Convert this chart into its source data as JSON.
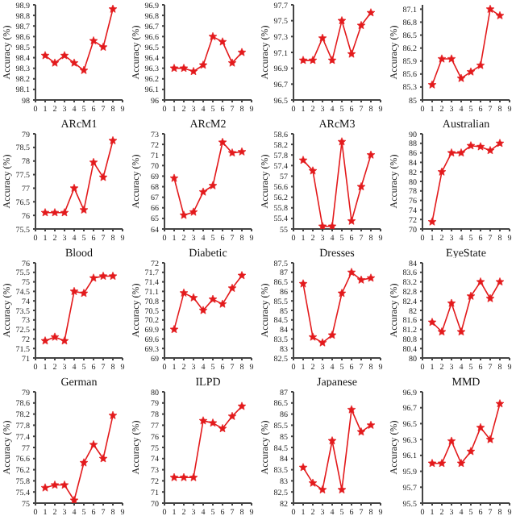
{
  "chart_data": [
    {
      "type": "line",
      "xlabel": "ARcM1",
      "ylabel": "Accuracy (%)",
      "x": [
        1,
        2,
        3,
        4,
        5,
        6,
        7,
        8
      ],
      "values": [
        98.42,
        98.35,
        98.42,
        98.35,
        98.28,
        98.56,
        98.5,
        98.86
      ],
      "color": "#e31a1c",
      "marker": "star",
      "xlim": [
        0,
        9
      ],
      "xticks": [
        0,
        1,
        2,
        3,
        4,
        5,
        6,
        7,
        8,
        9
      ],
      "ylim": [
        98,
        98.9
      ],
      "yticks": [
        98,
        98.1,
        98.2,
        98.3,
        98.4,
        98.5,
        98.6,
        98.7,
        98.8,
        98.9
      ]
    },
    {
      "type": "line",
      "xlabel": "ARcM2",
      "ylabel": "Accuracy (%)",
      "x": [
        1,
        2,
        3,
        4,
        5,
        6,
        7,
        8
      ],
      "values": [
        96.3,
        96.3,
        96.27,
        96.33,
        96.6,
        96.55,
        96.35,
        96.45
      ],
      "color": "#e31a1c",
      "marker": "star",
      "xlim": [
        0,
        9
      ],
      "xticks": [
        0,
        1,
        2,
        3,
        4,
        5,
        6,
        7,
        8,
        9
      ],
      "ylim": [
        96,
        96.9
      ],
      "yticks": [
        96,
        96.1,
        96.2,
        96.3,
        96.4,
        96.5,
        96.6,
        96.7,
        96.8,
        96.9
      ]
    },
    {
      "type": "line",
      "xlabel": "ARcM3",
      "ylabel": "Accuracy (%)",
      "x": [
        1,
        2,
        3,
        4,
        5,
        6,
        7,
        8
      ],
      "values": [
        97.0,
        97.0,
        97.28,
        97.0,
        97.5,
        97.08,
        97.44,
        97.6
      ],
      "color": "#e31a1c",
      "marker": "star",
      "xlim": [
        0,
        9
      ],
      "xticks": [
        0,
        1,
        2,
        3,
        4,
        5,
        6,
        7,
        8,
        9
      ],
      "ylim": [
        96.5,
        97.7
      ],
      "yticks": [
        96.5,
        96.7,
        96.9,
        97.1,
        97.3,
        97.5,
        97.7
      ]
    },
    {
      "type": "line",
      "xlabel": "Australian",
      "ylabel": "Accuracy (%)",
      "x": [
        1,
        2,
        3,
        4,
        5,
        6,
        7,
        8
      ],
      "values": [
        85.35,
        85.95,
        85.95,
        85.5,
        85.65,
        85.8,
        87.1,
        86.95
      ],
      "color": "#e31a1c",
      "marker": "star",
      "xlim": [
        0,
        9
      ],
      "xticks": [
        0,
        1,
        2,
        3,
        4,
        5,
        6,
        7,
        8,
        9
      ],
      "ylim": [
        85,
        87.2
      ],
      "yticks": [
        85,
        85.3,
        85.6,
        85.9,
        86.2,
        86.5,
        86.8,
        87.1
      ]
    },
    {
      "type": "line",
      "xlabel": "Blood",
      "ylabel": "Accuracy (%)",
      "x": [
        1,
        2,
        3,
        4,
        5,
        6,
        7,
        8
      ],
      "values": [
        76.1,
        76.1,
        76.1,
        77.0,
        76.2,
        77.95,
        77.4,
        78.75
      ],
      "color": "#e31a1c",
      "marker": "star",
      "xlim": [
        0,
        9
      ],
      "xticks": [
        0,
        1,
        2,
        3,
        4,
        5,
        6,
        7,
        8,
        9
      ],
      "ylim": [
        75.5,
        79
      ],
      "yticks": [
        75.5,
        76,
        76.5,
        77,
        77.5,
        78,
        78.5,
        79
      ]
    },
    {
      "type": "line",
      "xlabel": "Diabetic",
      "ylabel": "Accuracy (%)",
      "x": [
        1,
        2,
        3,
        4,
        5,
        6,
        7,
        8
      ],
      "values": [
        68.8,
        65.3,
        65.6,
        67.5,
        68.1,
        72.2,
        71.2,
        71.3
      ],
      "color": "#e31a1c",
      "marker": "star",
      "xlim": [
        0,
        9
      ],
      "xticks": [
        0,
        1,
        2,
        3,
        4,
        5,
        6,
        7,
        8,
        9
      ],
      "ylim": [
        64,
        73
      ],
      "yticks": [
        64,
        65,
        66,
        67,
        68,
        69,
        70,
        71,
        72,
        73
      ]
    },
    {
      "type": "line",
      "xlabel": "Dresses",
      "ylabel": "Accuracy (%)",
      "x": [
        1,
        2,
        3,
        4,
        5,
        6,
        7,
        8
      ],
      "values": [
        57.6,
        57.2,
        55.1,
        55.1,
        58.3,
        55.3,
        56.6,
        57.8
      ],
      "color": "#e31a1c",
      "marker": "star",
      "xlim": [
        0,
        9
      ],
      "xticks": [
        0,
        1,
        2,
        3,
        4,
        5,
        6,
        7,
        8,
        9
      ],
      "ylim": [
        55,
        58.6
      ],
      "yticks": [
        55,
        55.4,
        55.8,
        56.2,
        56.6,
        57,
        57.4,
        57.8,
        58.2,
        58.6
      ]
    },
    {
      "type": "line",
      "xlabel": "EyeState",
      "ylabel": "Accuracy (%)",
      "x": [
        1,
        2,
        3,
        4,
        5,
        6,
        7,
        8
      ],
      "values": [
        71.5,
        82,
        86,
        86,
        87.5,
        87.3,
        86.5,
        88
      ],
      "color": "#e31a1c",
      "marker": "star",
      "xlim": [
        0,
        9
      ],
      "xticks": [
        0,
        1,
        2,
        3,
        4,
        5,
        6,
        7,
        8,
        9
      ],
      "ylim": [
        70,
        90
      ],
      "yticks": [
        70,
        72,
        74,
        76,
        78,
        80,
        82,
        84,
        86,
        88,
        90
      ]
    },
    {
      "type": "line",
      "xlabel": "German",
      "ylabel": "Accuracy (%)",
      "x": [
        1,
        2,
        3,
        4,
        5,
        6,
        7,
        8
      ],
      "values": [
        71.9,
        72.1,
        71.9,
        74.5,
        74.4,
        75.2,
        75.3,
        75.3
      ],
      "color": "#e31a1c",
      "marker": "star",
      "xlim": [
        0,
        9
      ],
      "xticks": [
        0,
        1,
        2,
        3,
        4,
        5,
        6,
        7,
        8,
        9
      ],
      "ylim": [
        71,
        76
      ],
      "yticks": [
        71,
        71.5,
        72,
        72.5,
        73,
        73.5,
        74,
        74.5,
        75,
        75.5,
        76
      ]
    },
    {
      "type": "line",
      "xlabel": "ILPD",
      "ylabel": "Accuracy (%)",
      "x": [
        1,
        2,
        3,
        4,
        5,
        6,
        7,
        8
      ],
      "values": [
        69.9,
        71.05,
        70.9,
        70.5,
        70.85,
        70.7,
        71.2,
        71.6
      ],
      "color": "#e31a1c",
      "marker": "star",
      "xlim": [
        0,
        9
      ],
      "xticks": [
        0,
        1,
        2,
        3,
        4,
        5,
        6,
        7,
        8,
        9
      ],
      "ylim": [
        69,
        72
      ],
      "yticks": [
        69,
        69.3,
        69.6,
        69.9,
        70.2,
        70.5,
        70.8,
        71.1,
        71.4,
        71.7,
        72
      ]
    },
    {
      "type": "line",
      "xlabel": "Japanese",
      "ylabel": "Accuracy (%)",
      "x": [
        1,
        2,
        3,
        4,
        5,
        6,
        7,
        8
      ],
      "values": [
        86.4,
        83.6,
        83.3,
        83.7,
        85.9,
        87.0,
        86.6,
        86.7
      ],
      "color": "#e31a1c",
      "marker": "star",
      "xlim": [
        0,
        9
      ],
      "xticks": [
        0,
        1,
        2,
        3,
        4,
        5,
        6,
        7,
        8,
        9
      ],
      "ylim": [
        82.5,
        87.5
      ],
      "yticks": [
        82.5,
        83,
        83.5,
        84,
        84.5,
        85,
        85.5,
        86,
        86.5,
        87,
        87.5
      ]
    },
    {
      "type": "line",
      "xlabel": "MMD",
      "ylabel": "Accuracy (%)",
      "x": [
        1,
        2,
        3,
        4,
        5,
        6,
        7,
        8
      ],
      "values": [
        81.5,
        81.1,
        82.3,
        81.1,
        82.6,
        83.2,
        82.5,
        83.2
      ],
      "color": "#e31a1c",
      "marker": "star",
      "xlim": [
        0,
        9
      ],
      "xticks": [
        0,
        1,
        2,
        3,
        4,
        5,
        6,
        7,
        8,
        9
      ],
      "ylim": [
        80,
        84
      ],
      "yticks": [
        80,
        80.4,
        80.8,
        81.2,
        81.6,
        82,
        82.4,
        82.8,
        83.2,
        83.6,
        84
      ]
    },
    {
      "type": "line",
      "ylabel": "Accuracy (%)",
      "x": [
        1,
        2,
        3,
        4,
        5,
        6,
        7,
        8
      ],
      "values": [
        75.55,
        75.65,
        75.65,
        75.1,
        76.45,
        77.1,
        76.6,
        78.15
      ],
      "color": "#e31a1c",
      "marker": "star",
      "xlim": [
        0,
        9
      ],
      "xticks": [
        0,
        1,
        2,
        3,
        4,
        5,
        6,
        7,
        8,
        9
      ],
      "ylim": [
        75,
        79
      ],
      "yticks": [
        75,
        75.4,
        75.8,
        76.2,
        76.6,
        77,
        77.4,
        77.8,
        78.2,
        78.6,
        79
      ]
    },
    {
      "type": "line",
      "ylabel": "Accuracy (%)",
      "x": [
        1,
        2,
        3,
        4,
        5,
        6,
        7,
        8
      ],
      "values": [
        72.3,
        72.3,
        72.3,
        77.4,
        77.2,
        76.7,
        77.8,
        78.7
      ],
      "color": "#e31a1c",
      "marker": "star",
      "xlim": [
        0,
        9
      ],
      "xticks": [
        0,
        1,
        2,
        3,
        4,
        5,
        6,
        7,
        8,
        9
      ],
      "ylim": [
        70,
        80
      ],
      "yticks": [
        70,
        71,
        72,
        73,
        74,
        75,
        76,
        77,
        78,
        79,
        80
      ]
    },
    {
      "type": "line",
      "ylabel": "Accuracy (%)",
      "x": [
        1,
        2,
        3,
        4,
        5,
        6,
        7,
        8
      ],
      "values": [
        83.6,
        82.9,
        82.6,
        84.8,
        82.6,
        86.2,
        85.2,
        85.5
      ],
      "color": "#e31a1c",
      "marker": "star",
      "xlim": [
        0,
        9
      ],
      "xticks": [
        0,
        1,
        2,
        3,
        4,
        5,
        6,
        7,
        8,
        9
      ],
      "ylim": [
        82,
        87
      ],
      "yticks": [
        82,
        82.5,
        83,
        83.5,
        84,
        84.5,
        85,
        85.5,
        86,
        86.5,
        87
      ]
    },
    {
      "type": "line",
      "ylabel": "Accuracy (%)",
      "x": [
        1,
        2,
        3,
        4,
        5,
        6,
        7,
        8
      ],
      "values": [
        96.0,
        96.0,
        96.28,
        96.0,
        96.15,
        96.45,
        96.3,
        96.75
      ],
      "color": "#e31a1c",
      "marker": "star",
      "xlim": [
        0,
        9
      ],
      "xticks": [
        0,
        1,
        2,
        3,
        4,
        5,
        6,
        7,
        8,
        9
      ],
      "ylim": [
        95.5,
        96.9
      ],
      "yticks": [
        95.5,
        95.7,
        95.9,
        96.1,
        96.3,
        96.5,
        96.7,
        96.9
      ]
    }
  ]
}
